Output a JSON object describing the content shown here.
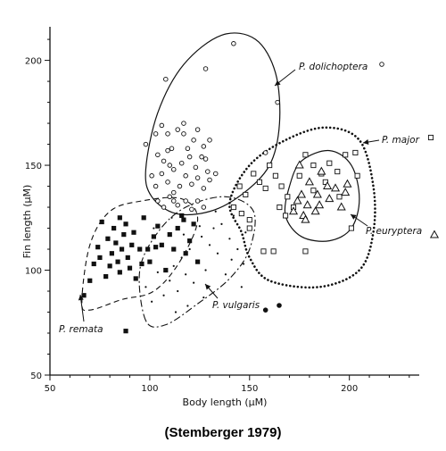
{
  "chart_data": {
    "type": "scatter",
    "xlabel": "Body length (µM)",
    "ylabel": "Fin length (µM)",
    "xlim": [
      50,
      235
    ],
    "ylim": [
      50,
      216
    ],
    "x_ticks": [
      "50",
      "100",
      "150",
      "200"
    ],
    "y_ticks": [
      "50",
      "100",
      "150",
      "200"
    ],
    "minor_x_step": 10,
    "minor_y_step": 10,
    "grid": false,
    "legend": "none",
    "source_caption": "(Stemberger 1979)",
    "series": [
      {
        "name": "P. dolichoptera",
        "marker": "circle-open",
        "label_text": "P. dolichoptera",
        "boundary": "solid",
        "points": [
          [
            142,
            208
          ],
          [
            128,
            196
          ],
          [
            108,
            191
          ],
          [
            164,
            180
          ],
          [
            158,
            156
          ],
          [
            103,
            165
          ],
          [
            106,
            169
          ],
          [
            109,
            165
          ],
          [
            111,
            158
          ],
          [
            114,
            167
          ],
          [
            117,
            165
          ],
          [
            119,
            158
          ],
          [
            122,
            162
          ],
          [
            124,
            167
          ],
          [
            127,
            159
          ],
          [
            130,
            162
          ],
          [
            104,
            155
          ],
          [
            107,
            152
          ],
          [
            109,
            157
          ],
          [
            112,
            148
          ],
          [
            116,
            151
          ],
          [
            120,
            154
          ],
          [
            123,
            149
          ],
          [
            126,
            154
          ],
          [
            129,
            147
          ],
          [
            101,
            145
          ],
          [
            103,
            140
          ],
          [
            106,
            146
          ],
          [
            109,
            142
          ],
          [
            112,
            137
          ],
          [
            115,
            140
          ],
          [
            118,
            145
          ],
          [
            121,
            141
          ],
          [
            124,
            144
          ],
          [
            127,
            139
          ],
          [
            130,
            143
          ],
          [
            133,
            146
          ],
          [
            104,
            133
          ],
          [
            107,
            130
          ],
          [
            110,
            135
          ],
          [
            114,
            131
          ],
          [
            118,
            133
          ],
          [
            121,
            129
          ],
          [
            124,
            133
          ],
          [
            127,
            130
          ],
          [
            98,
            160
          ],
          [
            110,
            150
          ],
          [
            117,
            170
          ],
          [
            128,
            153
          ],
          [
            112,
            133
          ]
        ]
      },
      {
        "name": "P. major",
        "marker": "square-open",
        "label_text": "P. major",
        "boundary": "dotted",
        "points": [
          [
            142,
            130
          ],
          [
            145,
            140
          ],
          [
            148,
            136
          ],
          [
            152,
            146
          ],
          [
            155,
            142
          ],
          [
            158,
            139
          ],
          [
            160,
            150
          ],
          [
            163,
            145
          ],
          [
            166,
            140
          ],
          [
            169,
            135
          ],
          [
            172,
            130
          ],
          [
            175,
            145
          ],
          [
            178,
            155
          ],
          [
            182,
            150
          ],
          [
            186,
            146
          ],
          [
            190,
            151
          ],
          [
            194,
            147
          ],
          [
            198,
            155
          ],
          [
            203,
            156
          ],
          [
            146,
            127
          ],
          [
            150,
            120
          ],
          [
            157,
            109
          ],
          [
            162,
            109
          ],
          [
            165,
            130
          ],
          [
            168,
            126
          ],
          [
            178,
            109
          ],
          [
            182,
            138
          ],
          [
            188,
            142
          ],
          [
            195,
            135
          ],
          [
            201,
            120
          ],
          [
            204,
            145
          ],
          [
            150,
            124
          ]
        ]
      },
      {
        "name": "P. euryptera",
        "marker": "triangle-open",
        "label_text": "P. euryptera",
        "boundary": "solid",
        "points": [
          [
            175,
            150
          ],
          [
            180,
            142
          ],
          [
            184,
            136
          ],
          [
            186,
            147
          ],
          [
            189,
            140
          ],
          [
            190,
            134
          ],
          [
            193,
            139
          ],
          [
            196,
            130
          ],
          [
            198,
            137
          ],
          [
            199,
            141
          ],
          [
            172,
            128
          ],
          [
            174,
            133
          ],
          [
            177,
            126
          ],
          [
            179,
            131
          ],
          [
            183,
            128
          ],
          [
            178,
            124
          ],
          [
            176,
            136
          ],
          [
            185,
            131
          ]
        ]
      },
      {
        "name": "P. remata",
        "marker": "square-filled",
        "label_text": "P. remata",
        "boundary": "dashed",
        "points": [
          [
            88,
            71
          ],
          [
            67,
            88
          ],
          [
            70,
            95
          ],
          [
            72,
            103
          ],
          [
            74,
            111
          ],
          [
            75,
            106
          ],
          [
            78,
            97
          ],
          [
            79,
            115
          ],
          [
            80,
            102
          ],
          [
            81,
            108
          ],
          [
            82,
            120
          ],
          [
            83,
            113
          ],
          [
            84,
            104
          ],
          [
            85,
            99
          ],
          [
            86,
            110
          ],
          [
            87,
            117
          ],
          [
            88,
            122
          ],
          [
            89,
            106
          ],
          [
            90,
            101
          ],
          [
            91,
            112
          ],
          [
            92,
            118
          ],
          [
            93,
            96
          ],
          [
            95,
            110
          ],
          [
            97,
            125
          ],
          [
            100,
            104
          ],
          [
            102,
            116
          ],
          [
            104,
            121
          ],
          [
            106,
            112
          ],
          [
            108,
            100
          ],
          [
            112,
            110
          ],
          [
            114,
            120
          ],
          [
            116,
            126
          ],
          [
            118,
            108
          ],
          [
            120,
            114
          ],
          [
            122,
            122
          ],
          [
            124,
            104
          ],
          [
            96,
            103
          ],
          [
            99,
            110
          ],
          [
            103,
            111
          ],
          [
            110,
            117
          ],
          [
            117,
            124
          ],
          [
            85,
            125
          ],
          [
            76,
            123
          ]
        ]
      },
      {
        "name": "P. vulgaris",
        "marker": "dot-small",
        "label_text": "P. vulgaris",
        "boundary": "dash-dot",
        "points": [
          [
            98,
            92
          ],
          [
            101,
            85
          ],
          [
            104,
            99
          ],
          [
            107,
            88
          ],
          [
            110,
            95
          ],
          [
            112,
            102
          ],
          [
            114,
            90
          ],
          [
            116,
            106
          ],
          [
            118,
            98
          ],
          [
            120,
            110
          ],
          [
            122,
            94
          ],
          [
            124,
            104
          ],
          [
            126,
            116
          ],
          [
            128,
            100
          ],
          [
            130,
            112
          ],
          [
            132,
            120
          ],
          [
            134,
            108
          ],
          [
            136,
            122
          ],
          [
            138,
            98
          ],
          [
            140,
            115
          ],
          [
            142,
            126
          ],
          [
            144,
            110
          ],
          [
            146,
            92
          ],
          [
            148,
            118
          ],
          [
            102,
            120
          ],
          [
            106,
            112
          ],
          [
            111,
            125
          ],
          [
            117,
            117
          ],
          [
            125,
            121
          ],
          [
            133,
            128
          ],
          [
            141,
            105
          ],
          [
            147,
            103
          ],
          [
            113,
            80
          ],
          [
            119,
            83
          ],
          [
            127,
            87
          ]
        ]
      },
      {
        "name": "P. vulgaris (filled dot near label)",
        "marker": "dot-large",
        "points": [
          [
            158,
            81
          ]
        ]
      }
    ],
    "annotations": [
      {
        "text": "P. dolichoptera",
        "symbol": "circle-open"
      },
      {
        "text": "P. major",
        "symbol": "square-open"
      },
      {
        "text": "P. euryptera",
        "symbol": "triangle-open"
      },
      {
        "text": "P. vulgaris",
        "symbol": "dot-large"
      },
      {
        "text": "P. remata",
        "symbol": "none"
      }
    ]
  }
}
